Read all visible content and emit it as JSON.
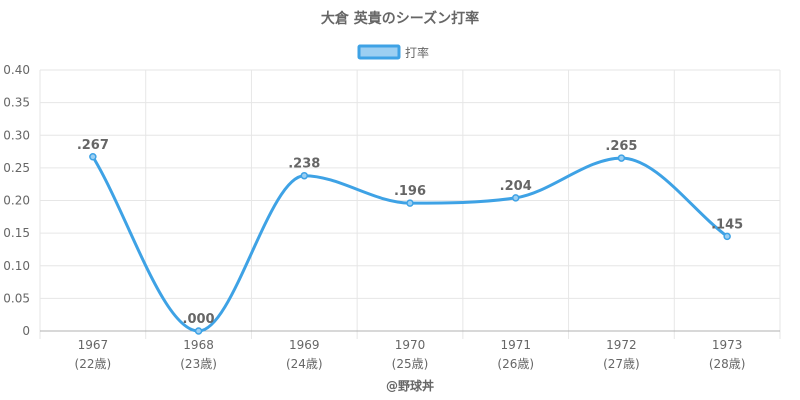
{
  "chart_data": {
    "type": "line",
    "title": "大倉 英貴のシーズン打率",
    "legend": {
      "label": "打率",
      "position": "top"
    },
    "categories": [
      "1967",
      "1968",
      "1969",
      "1970",
      "1971",
      "1972",
      "1973"
    ],
    "category_sublabels": [
      "(22歳)",
      "(23歳)",
      "(24歳)",
      "(25歳)",
      "(26歳)",
      "(27歳)",
      "(28歳)"
    ],
    "series": [
      {
        "name": "打率",
        "values": [
          0.267,
          0.0,
          0.238,
          0.196,
          0.204,
          0.265,
          0.145
        ],
        "labels": [
          ".267",
          ".000",
          ".238",
          ".196",
          ".204",
          ".265",
          ".145"
        ]
      }
    ],
    "ylim": [
      0,
      0.4
    ],
    "yticks": [
      "0",
      "0.05",
      "0.10",
      "0.15",
      "0.20",
      "0.25",
      "0.30",
      "0.35",
      "0.40"
    ],
    "grid": true,
    "colors": {
      "line": "#3ea2e5",
      "fill": "#9ccff2",
      "grid": "#e6e6e6",
      "axis": "#b0b0b0"
    },
    "credit": "@野球丼"
  }
}
